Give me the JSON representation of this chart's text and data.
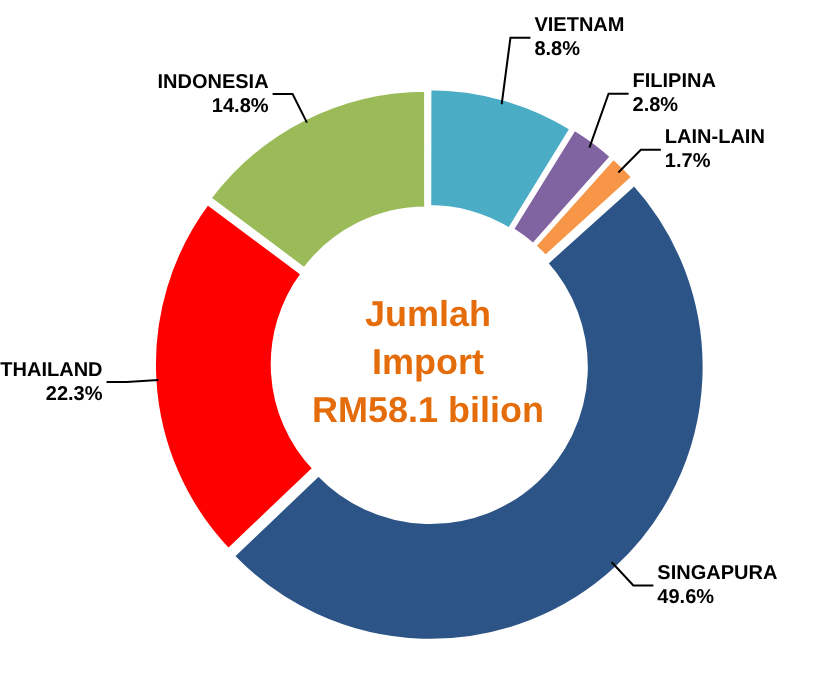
{
  "chart_data": {
    "type": "donut",
    "categories": [
      "VIETNAM",
      "FILIPINA",
      "LAIN-LAIN",
      "SINGAPURA",
      "THAILAND",
      "INDONESIA"
    ],
    "values": [
      8.8,
      2.8,
      1.7,
      49.6,
      22.3,
      14.8
    ],
    "value_labels": [
      "8.8%",
      "2.8%",
      "1.7%",
      "49.6%",
      "22.3%",
      "14.8%"
    ],
    "colors": [
      "#4bacc6",
      "#8064a2",
      "#f79646",
      "#2c5486",
      "#ff0000",
      "#9bbb59"
    ],
    "annotations": [
      "Jumlah Import RM58.1 bilion"
    ],
    "legend": false
  }
}
